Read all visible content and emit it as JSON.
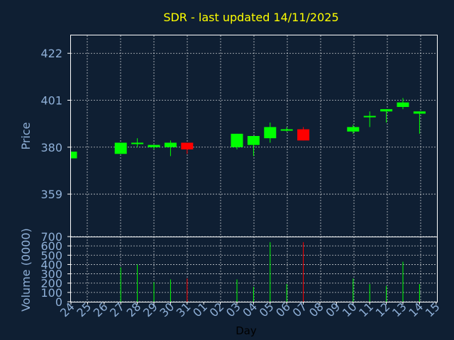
{
  "chart_data": {
    "type": "candlestick",
    "title": "SDR - last updated 14/11/2025",
    "xlabel": "Day",
    "price_panel": {
      "ylabel": "Price",
      "ylim": [
        340,
        430
      ],
      "yticks": [
        359,
        380,
        401,
        422
      ],
      "grid": true
    },
    "volume_panel": {
      "ylabel": "Volume (0000)",
      "ylim": [
        0,
        700
      ],
      "yticks": [
        0,
        100,
        200,
        300,
        400,
        500,
        600,
        700
      ],
      "grid": true
    },
    "day_labels": [
      "24",
      "25",
      "26",
      "27",
      "28",
      "29",
      "30",
      "31",
      "01",
      "02",
      "03",
      "04",
      "05",
      "06",
      "07",
      "08",
      "09",
      "10",
      "11",
      "12",
      "13",
      "14",
      "15"
    ],
    "candles": [
      {
        "day": "24",
        "open": 375,
        "close": 378,
        "high": 378,
        "low": 375,
        "volume": 0
      },
      {
        "day": "27",
        "open": 377,
        "close": 382,
        "high": 382,
        "low": 377,
        "volume": 370
      },
      {
        "day": "28",
        "open": 382,
        "close": 382,
        "high": 384,
        "low": 380,
        "volume": 400
      },
      {
        "day": "29",
        "open": 380,
        "close": 381,
        "high": 381,
        "low": 379,
        "volume": 210
      },
      {
        "day": "30",
        "open": 380,
        "close": 382,
        "high": 383,
        "low": 376,
        "volume": 240
      },
      {
        "day": "31",
        "open": 382,
        "close": 379,
        "high": 382,
        "low": 377,
        "volume": 250
      },
      {
        "day": "03",
        "open": 380,
        "close": 386,
        "high": 386,
        "low": 379,
        "volume": 240
      },
      {
        "day": "04",
        "open": 381,
        "close": 385,
        "high": 385,
        "low": 376,
        "volume": 160
      },
      {
        "day": "05",
        "open": 384,
        "close": 389,
        "high": 391,
        "low": 382,
        "volume": 640
      },
      {
        "day": "06",
        "open": 388,
        "close": 388,
        "high": 389,
        "low": 387,
        "volume": 190
      },
      {
        "day": "07",
        "open": 388,
        "close": 383,
        "high": 389,
        "low": 383,
        "volume": 640
      },
      {
        "day": "10",
        "open": 387,
        "close": 389,
        "high": 390,
        "low": 386,
        "volume": 250
      },
      {
        "day": "11",
        "open": 394,
        "close": 394,
        "high": 396,
        "low": 389,
        "volume": 190
      },
      {
        "day": "12",
        "open": 396,
        "close": 397,
        "high": 397,
        "low": 391,
        "volume": 170
      },
      {
        "day": "13",
        "open": 398,
        "close": 400,
        "high": 402,
        "low": 397,
        "volume": 430
      },
      {
        "day": "14",
        "open": 395,
        "close": 396,
        "high": 396,
        "low": 386,
        "volume": 190
      }
    ],
    "colors": {
      "up": "#00ff00",
      "down": "#ff0000",
      "background": "#0f1f33",
      "title": "#ffff00",
      "tick_text": "#8fb0d8",
      "frame": "#ffffff"
    }
  }
}
